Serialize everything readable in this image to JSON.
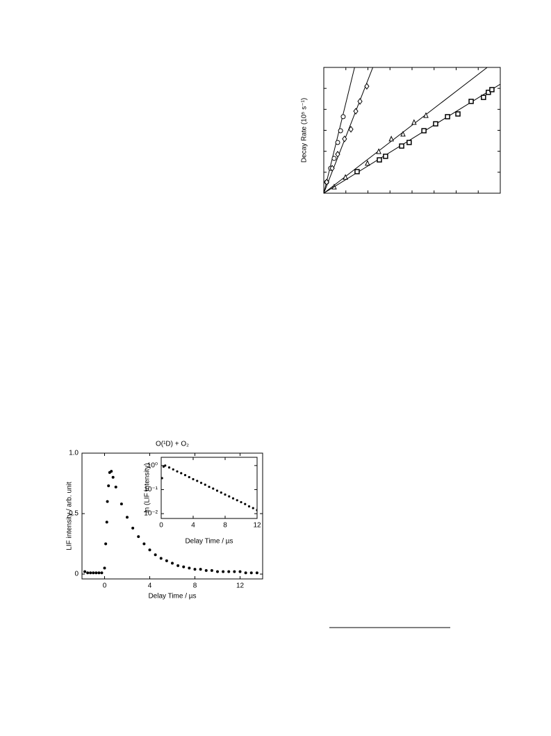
{
  "chart_data": [
    {
      "type": "scatter",
      "ylabel": "Decay Rate (10⁵ s⁻¹)",
      "xlim": [
        0,
        8
      ],
      "ylim": [
        0,
        6
      ],
      "xticks": [
        0,
        1,
        2,
        3,
        4,
        5,
        6,
        7,
        8
      ],
      "yticks": [
        0,
        1,
        2,
        3,
        4,
        5,
        6
      ],
      "tick_labels": false,
      "series": [
        {
          "marker": "circle",
          "color": "#000000",
          "fit_slope": 4.3,
          "x": [
            0.13,
            0.31,
            0.47,
            0.63,
            0.76,
            0.88
          ],
          "values": [
            0.53,
            1.19,
            1.66,
            2.42,
            2.98,
            3.65
          ]
        },
        {
          "marker": "diamond",
          "color": "#000000",
          "fit_slope": 2.7,
          "x": [
            0.13,
            0.38,
            0.63,
            0.94,
            1.23,
            1.45,
            1.64,
            1.95
          ],
          "values": [
            0.53,
            1.19,
            1.86,
            2.59,
            3.05,
            3.91,
            4.38,
            5.1
          ]
        },
        {
          "marker": "triangle",
          "color": "#000000",
          "fit_slope": 0.81,
          "x": [
            0.47,
            0.98,
            1.98,
            2.49,
            3.06,
            3.59,
            4.09,
            4.63
          ],
          "values": [
            0.3,
            0.76,
            1.43,
            1.99,
            2.59,
            2.82,
            3.38,
            3.71
          ]
        },
        {
          "marker": "square",
          "color": "#000000",
          "fit_slope": 0.65,
          "x": [
            1.51,
            2.52,
            2.8,
            3.53,
            3.87,
            4.54,
            5.07,
            5.61,
            6.08,
            6.68,
            7.24,
            7.46,
            7.62
          ],
          "values": [
            1.03,
            1.59,
            1.76,
            2.25,
            2.42,
            2.98,
            3.31,
            3.65,
            3.78,
            4.38,
            4.57,
            4.81,
            4.94
          ]
        }
      ]
    },
    {
      "type": "scatter",
      "title": "O(¹D) + O₂",
      "xlabel": "Delay Time / µs",
      "ylabel": "LIF intensity / arb. unit",
      "xlim": [
        -2,
        14
      ],
      "ylim": [
        -0.04,
        1.0
      ],
      "xticks": [
        0,
        4,
        8,
        12
      ],
      "yticks": [
        0,
        0.5,
        {
          "value": 1,
          "label": "1.0"
        }
      ],
      "series": [
        {
          "marker": "dot",
          "color": "#000000",
          "x": [
            -1.75,
            -1.5,
            -1.25,
            -1,
            -0.75,
            -0.5,
            -0.25,
            0,
            0.1,
            0.2,
            0.25,
            0.35,
            0.45,
            0.6,
            0.75,
            1,
            1.5,
            2,
            2.5,
            3,
            3.5,
            4,
            4.5,
            5,
            5.5,
            6,
            6.5,
            7,
            7.5,
            8,
            8.5,
            9,
            9.5,
            10,
            10.5,
            11,
            11.5,
            12,
            12.5,
            13,
            13.5
          ],
          "values": [
            0.02,
            0.01,
            0.01,
            0.01,
            0.01,
            0.01,
            0.01,
            0.05,
            0.25,
            0.43,
            0.6,
            0.73,
            0.84,
            0.85,
            0.8,
            0.72,
            0.58,
            0.47,
            0.38,
            0.31,
            0.25,
            0.2,
            0.16,
            0.13,
            0.11,
            0.09,
            0.07,
            0.06,
            0.05,
            0.04,
            0.04,
            0.03,
            0.03,
            0.02,
            0.02,
            0.02,
            0.02,
            0.02,
            0.01,
            0.01,
            0.01
          ]
        }
      ]
    },
    {
      "type": "scatter",
      "xlabel": "Delay Time / µs",
      "ylabel": "ln (LIF intensity)",
      "log_y": true,
      "xlim": [
        0,
        12
      ],
      "ylim": [
        0.0063,
        2.2
      ],
      "xticks": [
        0,
        4,
        8,
        12
      ],
      "yticks": [
        {
          "value": 0.01,
          "label": "10⁻²"
        },
        {
          "value": 0.1,
          "label": "10⁻¹"
        },
        {
          "value": 1,
          "label": "10⁰"
        }
      ],
      "series": [
        {
          "marker": "dot",
          "color": "#000000",
          "x": [
            0.1,
            0.3,
            0.5,
            1,
            1.5,
            2,
            2.5,
            3,
            3.5,
            4,
            4.5,
            5,
            5.5,
            6,
            6.5,
            7,
            7.5,
            8,
            8.5,
            9,
            9.5,
            10,
            10.5,
            11,
            11.5,
            12
          ],
          "values": [
            0.3,
            0.9,
            1.0,
            0.83,
            0.69,
            0.57,
            0.48,
            0.4,
            0.33,
            0.27,
            0.23,
            0.19,
            0.16,
            0.13,
            0.11,
            0.09,
            0.075,
            0.062,
            0.052,
            0.043,
            0.036,
            0.03,
            0.025,
            0.02,
            0.017,
            0.014
          ]
        }
      ]
    }
  ]
}
